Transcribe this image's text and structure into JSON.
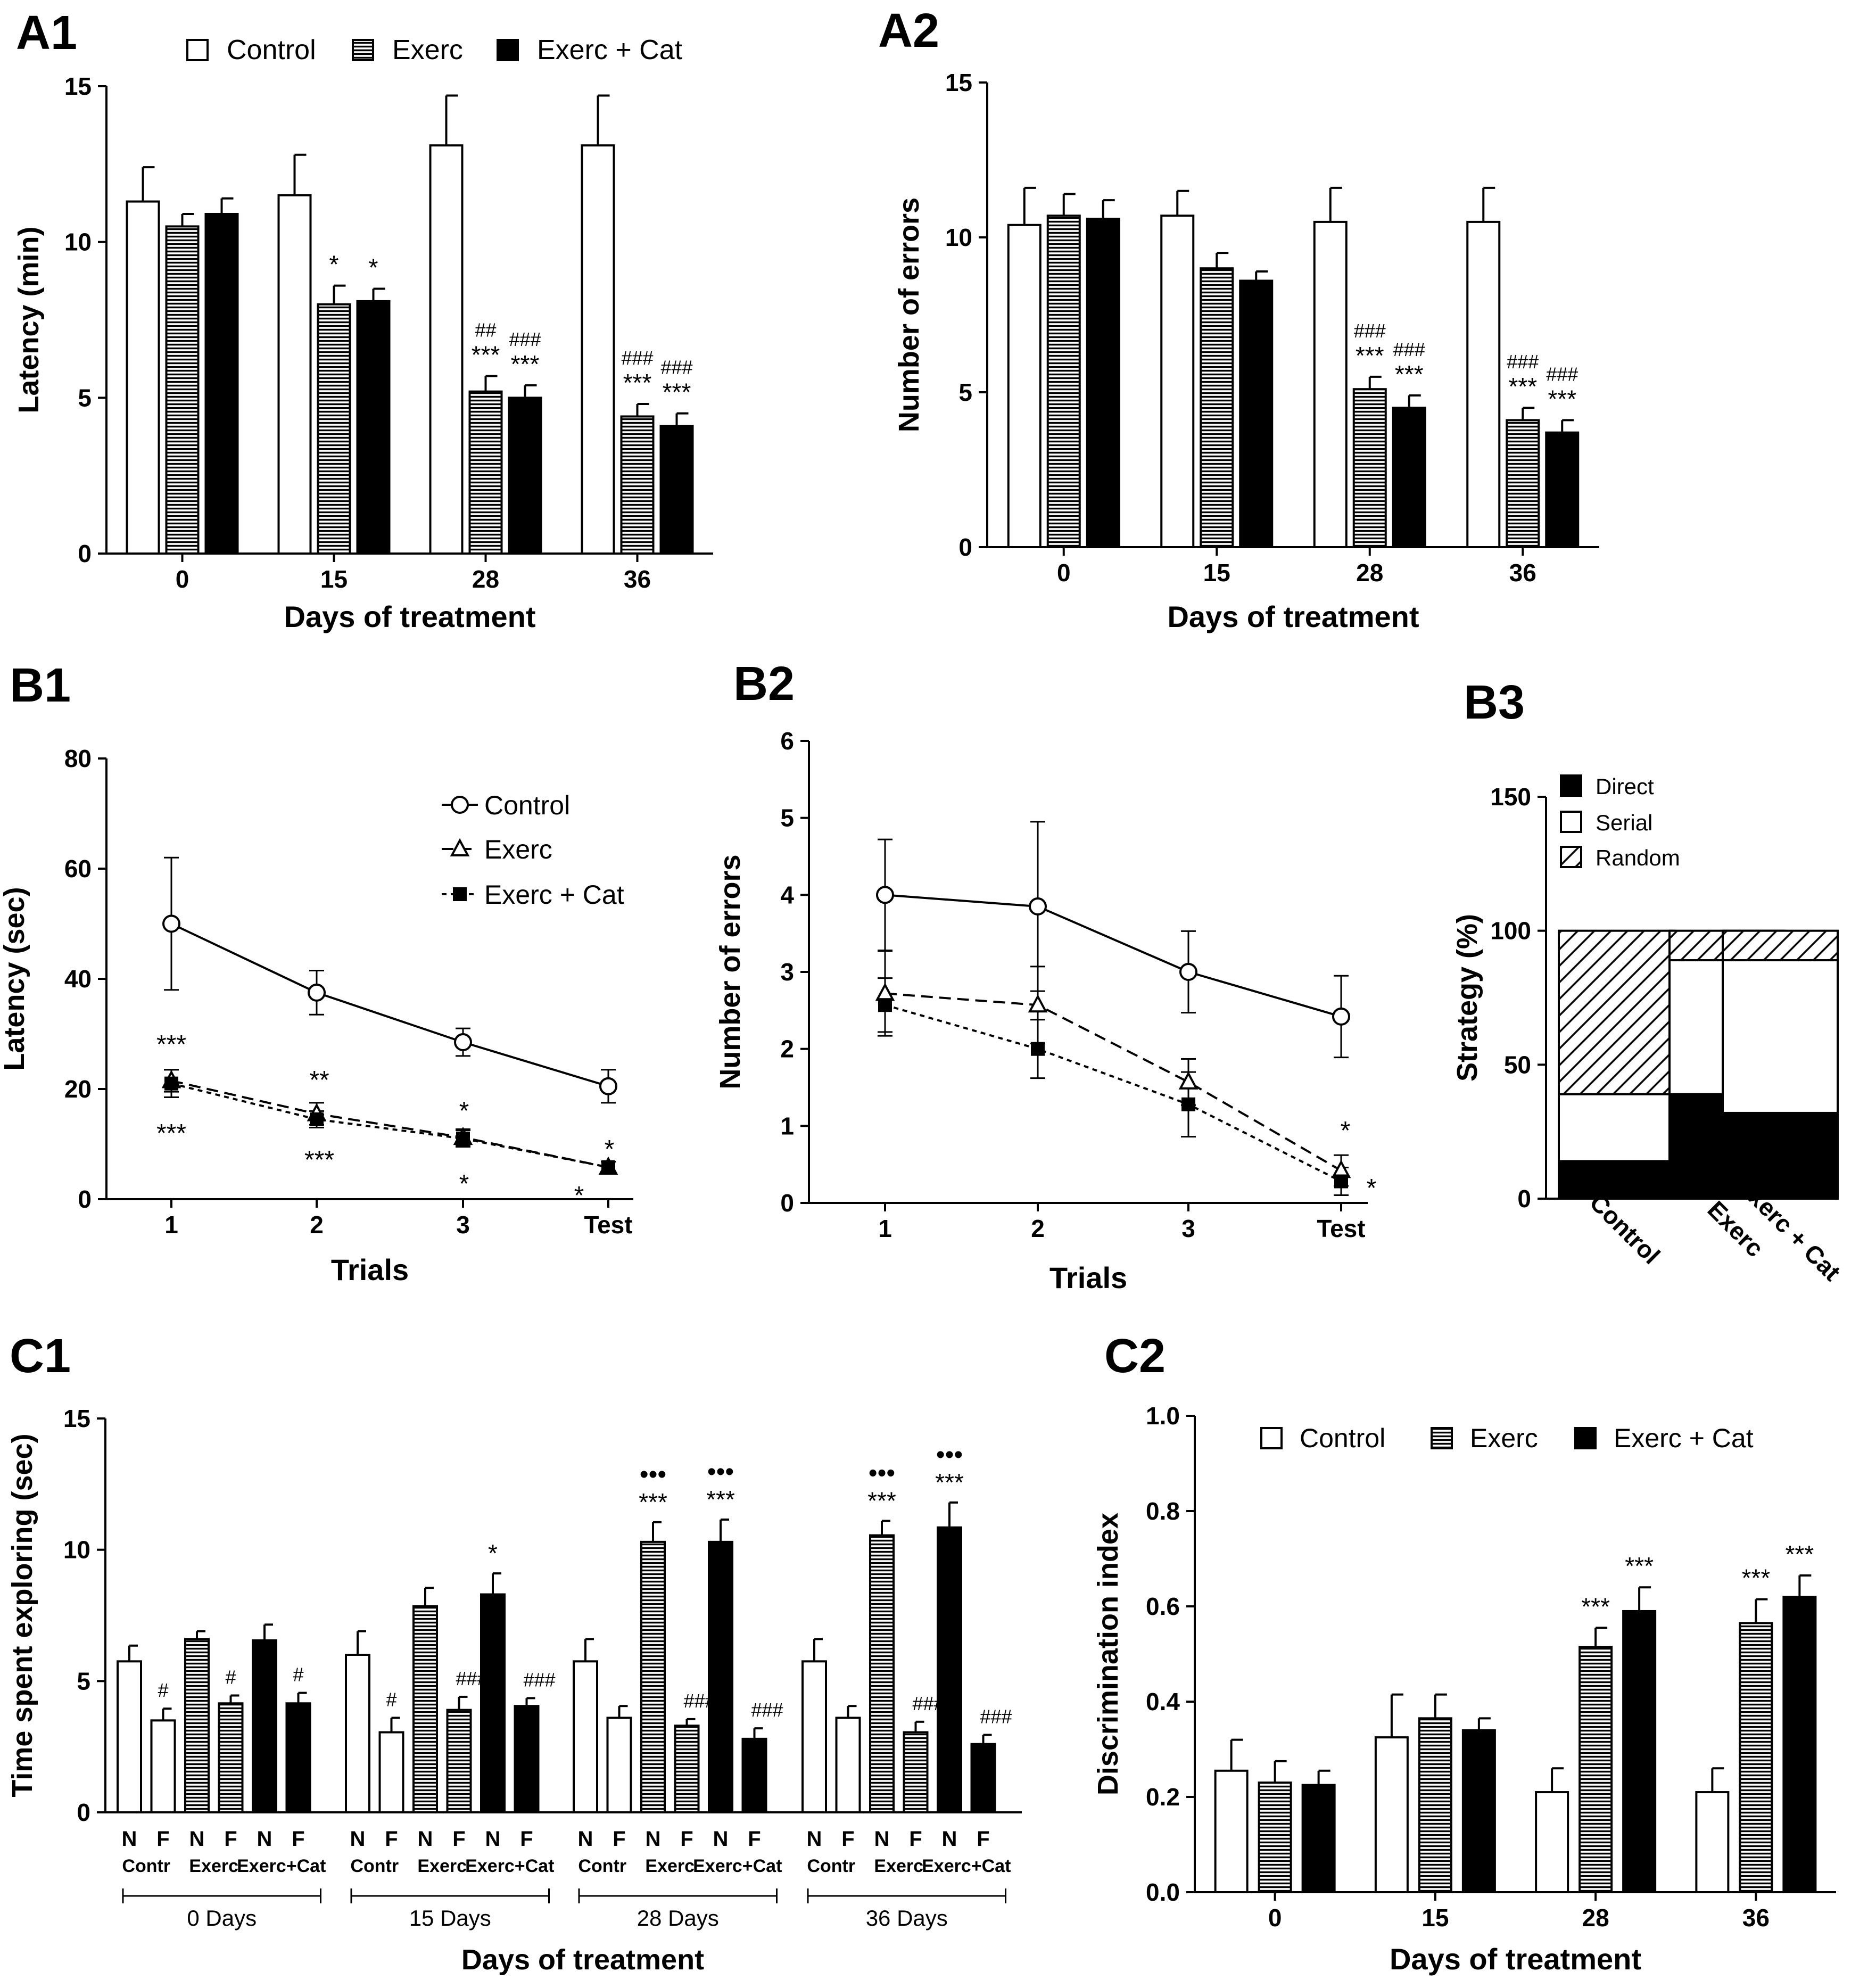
{
  "chart_data": [
    {
      "id": "A1",
      "panel_label": "A1",
      "type": "bar",
      "categories": [
        "0",
        "15",
        "28",
        "36"
      ],
      "xlabel": "Days of treatment",
      "ylabel": "Latency (min)",
      "ylim": [
        0,
        15
      ],
      "yticks": [
        "0",
        "5",
        "10",
        "15"
      ],
      "legend": [
        "Control",
        "Exerc",
        "Exerc + Cat"
      ],
      "series": [
        {
          "name": "Control",
          "fill": "white",
          "values": [
            11.3,
            11.5,
            13.1,
            13.1
          ],
          "errors": [
            1.1,
            1.3,
            1.6,
            1.6
          ],
          "annotations": [
            [],
            [],
            [],
            []
          ]
        },
        {
          "name": "Exerc",
          "fill": "hatch",
          "values": [
            10.5,
            8.0,
            5.2,
            4.4
          ],
          "errors": [
            0.4,
            0.6,
            0.5,
            0.4
          ],
          "annotations": [
            [],
            [
              "*"
            ],
            [
              "##",
              "***"
            ],
            [
              "###",
              "***"
            ]
          ]
        },
        {
          "name": "Exerc + Cat",
          "fill": "black",
          "values": [
            10.9,
            8.1,
            5.0,
            4.1
          ],
          "errors": [
            0.5,
            0.4,
            0.4,
            0.4
          ],
          "annotations": [
            [],
            [
              "*"
            ],
            [
              "###",
              "***"
            ],
            [
              "###",
              "***"
            ]
          ]
        }
      ]
    },
    {
      "id": "A2",
      "panel_label": "A2",
      "type": "bar",
      "categories": [
        "0",
        "15",
        "28",
        "36"
      ],
      "xlabel": "Days of treatment",
      "ylabel": "Number of errors",
      "ylim": [
        0,
        15
      ],
      "yticks": [
        "0",
        "5",
        "10",
        "15"
      ],
      "series": [
        {
          "name": "Control",
          "fill": "white",
          "values": [
            10.4,
            10.7,
            10.5,
            10.5
          ],
          "errors": [
            1.2,
            0.8,
            1.1,
            1.1
          ],
          "annotations": [
            [],
            [],
            [],
            []
          ]
        },
        {
          "name": "Exerc",
          "fill": "hatch",
          "values": [
            10.7,
            9.0,
            5.1,
            4.1
          ],
          "errors": [
            0.7,
            0.5,
            0.4,
            0.4
          ],
          "annotations": [
            [],
            [],
            [
              "###",
              "***"
            ],
            [
              "###",
              "***"
            ]
          ]
        },
        {
          "name": "Exerc + Cat",
          "fill": "black",
          "values": [
            10.6,
            8.6,
            4.5,
            3.7
          ],
          "errors": [
            0.6,
            0.3,
            0.4,
            0.4
          ],
          "annotations": [
            [],
            [],
            [
              "###",
              "***"
            ],
            [
              "###",
              "***"
            ]
          ]
        }
      ]
    },
    {
      "id": "B1",
      "panel_label": "B1",
      "type": "line",
      "categories": [
        "1",
        "2",
        "3",
        "Test"
      ],
      "xlabel": "Trials",
      "ylabel": "Latency (sec)",
      "ylim": [
        0,
        80
      ],
      "yticks": [
        "0",
        "20",
        "40",
        "60",
        "80"
      ],
      "legend": [
        "Control",
        "Exerc",
        "Exerc + Cat"
      ],
      "series": [
        {
          "name": "Control",
          "marker": "circle",
          "dash": "solid",
          "values": [
            50,
            37.5,
            28.5,
            20.5
          ],
          "errors": [
            12,
            4,
            2.5,
            3
          ]
        },
        {
          "name": "Exerc",
          "marker": "triangle",
          "dash": "dashed",
          "values": [
            21.5,
            15.5,
            11.2,
            5.8
          ],
          "errors": [
            2,
            2,
            1.5,
            1
          ],
          "annotations": [
            "***",
            "**",
            "*",
            "*"
          ]
        },
        {
          "name": "Exerc + Cat",
          "marker": "square",
          "dash": "dotted",
          "values": [
            21,
            14.5,
            11,
            5.8
          ],
          "errors": [
            2.5,
            1.5,
            1.5,
            1
          ],
          "annotations": [
            "***",
            "***",
            "*",
            "*"
          ]
        }
      ]
    },
    {
      "id": "B2",
      "panel_label": "B2",
      "type": "line",
      "categories": [
        "1",
        "2",
        "3",
        "Test"
      ],
      "xlabel": "Trials",
      "ylabel": "Number of errors",
      "ylim": [
        0,
        6
      ],
      "yticks": [
        "0",
        "1",
        "2",
        "3",
        "4",
        "5",
        "6"
      ],
      "series": [
        {
          "name": "Control",
          "marker": "circle",
          "dash": "solid",
          "values": [
            4.0,
            3.85,
            3.0,
            2.42
          ],
          "errors": [
            0.72,
            1.1,
            0.53,
            0.53
          ]
        },
        {
          "name": "Exerc",
          "marker": "triangle",
          "dash": "dashed",
          "values": [
            2.72,
            2.57,
            1.57,
            0.42
          ],
          "errors": [
            0.55,
            0.5,
            0.3,
            0.2
          ],
          "annotations": [
            "",
            "",
            "",
            "*"
          ]
        },
        {
          "name": "Exerc + Cat",
          "marker": "square",
          "dash": "dotted",
          "values": [
            2.57,
            2.0,
            1.28,
            0.28
          ],
          "errors": [
            0.35,
            0.38,
            0.42,
            0.18
          ],
          "annotations": [
            "",
            "",
            "",
            "*"
          ]
        }
      ]
    },
    {
      "id": "B3",
      "panel_label": "B3",
      "type": "bar",
      "stacked": true,
      "categories": [
        "Control",
        "Exerc",
        "Exerc + Cat"
      ],
      "ylabel": "Strategy (%)",
      "ylim": [
        0,
        150
      ],
      "yticks": [
        "0",
        "50",
        "100",
        "150"
      ],
      "legend": [
        "Direct",
        "Serial",
        "Random"
      ],
      "series": [
        {
          "name": "Direct",
          "fill": "black",
          "values": [
            14,
            39,
            32
          ]
        },
        {
          "name": "Serial",
          "fill": "white",
          "values": [
            25,
            50,
            57
          ]
        },
        {
          "name": "Random",
          "fill": "diag",
          "values": [
            61,
            11,
            11
          ]
        }
      ]
    },
    {
      "id": "C1",
      "panel_label": "C1",
      "type": "bar",
      "ylabel": "Time spent exploring (sec)",
      "xlabel": "Days of treatment",
      "ylim": [
        0,
        15
      ],
      "yticks": [
        "0",
        "5",
        "10",
        "15"
      ],
      "bar_letters": [
        "N",
        "F"
      ],
      "group_labels": [
        "Contr",
        "Exerc",
        "Exerc+Cat"
      ],
      "periods": [
        {
          "label": "0 Days",
          "bars": [
            {
              "group": "Control",
              "obj": "N",
              "fill": "white",
              "value": 5.75,
              "error": 0.6,
              "annotations": []
            },
            {
              "group": "Control",
              "obj": "F",
              "fill": "white",
              "value": 3.5,
              "error": 0.45,
              "annotations": [
                "#"
              ]
            },
            {
              "group": "Exerc",
              "obj": "N",
              "fill": "hatch",
              "value": 6.6,
              "error": 0.3,
              "annotations": []
            },
            {
              "group": "Exerc",
              "obj": "F",
              "fill": "hatch",
              "value": 4.15,
              "error": 0.3,
              "annotations": [
                "#"
              ]
            },
            {
              "group": "Exerc + Cat",
              "obj": "N",
              "fill": "black",
              "value": 6.55,
              "error": 0.6,
              "annotations": []
            },
            {
              "group": "Exerc + Cat",
              "obj": "F",
              "fill": "black",
              "value": 4.15,
              "error": 0.4,
              "annotations": [
                "#"
              ]
            }
          ]
        },
        {
          "label": "15 Days",
          "bars": [
            {
              "group": "Control",
              "obj": "N",
              "fill": "white",
              "value": 6.0,
              "error": 0.9,
              "annotations": []
            },
            {
              "group": "Control",
              "obj": "F",
              "fill": "white",
              "value": 3.05,
              "error": 0.55,
              "annotations": [
                "#"
              ]
            },
            {
              "group": "Exerc",
              "obj": "N",
              "fill": "hatch",
              "value": 7.85,
              "error": 0.7,
              "annotations": []
            },
            {
              "group": "Exerc",
              "obj": "F",
              "fill": "hatch",
              "value": 3.9,
              "error": 0.5,
              "annotations": [
                "###"
              ]
            },
            {
              "group": "Exerc + Cat",
              "obj": "N",
              "fill": "black",
              "value": 8.3,
              "error": 0.8,
              "annotations": [
                "*"
              ]
            },
            {
              "group": "Exerc + Cat",
              "obj": "F",
              "fill": "black",
              "value": 4.05,
              "error": 0.3,
              "annotations": [
                "###"
              ]
            }
          ]
        },
        {
          "label": "28 Days",
          "bars": [
            {
              "group": "Control",
              "obj": "N",
              "fill": "white",
              "value": 5.75,
              "error": 0.85,
              "annotations": []
            },
            {
              "group": "Control",
              "obj": "F",
              "fill": "white",
              "value": 3.6,
              "error": 0.45,
              "annotations": []
            },
            {
              "group": "Exerc",
              "obj": "N",
              "fill": "hatch",
              "value": 10.3,
              "error": 0.75,
              "annotations": [
                "•••",
                "***"
              ]
            },
            {
              "group": "Exerc",
              "obj": "F",
              "fill": "hatch",
              "value": 3.3,
              "error": 0.25,
              "annotations": [
                "###"
              ]
            },
            {
              "group": "Exerc + Cat",
              "obj": "N",
              "fill": "black",
              "value": 10.3,
              "error": 0.85,
              "annotations": [
                "•••",
                "***"
              ]
            },
            {
              "group": "Exerc + Cat",
              "obj": "F",
              "fill": "black",
              "value": 2.8,
              "error": 0.4,
              "annotations": [
                "###"
              ]
            }
          ]
        },
        {
          "label": "36 Days",
          "bars": [
            {
              "group": "Control",
              "obj": "N",
              "fill": "white",
              "value": 5.75,
              "error": 0.85,
              "annotations": []
            },
            {
              "group": "Control",
              "obj": "F",
              "fill": "white",
              "value": 3.6,
              "error": 0.45,
              "annotations": []
            },
            {
              "group": "Exerc",
              "obj": "N",
              "fill": "hatch",
              "value": 10.55,
              "error": 0.55,
              "annotations": [
                "•••",
                "***"
              ]
            },
            {
              "group": "Exerc",
              "obj": "F",
              "fill": "hatch",
              "value": 3.05,
              "error": 0.4,
              "annotations": [
                "###"
              ]
            },
            {
              "group": "Exerc + Cat",
              "obj": "N",
              "fill": "black",
              "value": 10.85,
              "error": 0.95,
              "annotations": [
                "•••",
                "***"
              ]
            },
            {
              "group": "Exerc + Cat",
              "obj": "F",
              "fill": "black",
              "value": 2.6,
              "error": 0.35,
              "annotations": [
                "###"
              ]
            }
          ]
        }
      ]
    },
    {
      "id": "C2",
      "panel_label": "C2",
      "type": "bar",
      "categories": [
        "0",
        "15",
        "28",
        "36"
      ],
      "xlabel": "Days of treatment",
      "ylabel": "Discrimination index",
      "ylim": [
        0,
        1.0
      ],
      "yticks": [
        "0.0",
        "0.2",
        "0.4",
        "0.6",
        "0.8",
        "1.0"
      ],
      "legend": [
        "Control",
        "Exerc",
        "Exerc + Cat"
      ],
      "series": [
        {
          "name": "Control",
          "fill": "white",
          "values": [
            0.255,
            0.325,
            0.21,
            0.21
          ],
          "errors": [
            0.065,
            0.09,
            0.05,
            0.05
          ],
          "annotations": [
            [],
            [],
            [],
            []
          ]
        },
        {
          "name": "Exerc",
          "fill": "hatch",
          "values": [
            0.23,
            0.365,
            0.515,
            0.565
          ],
          "errors": [
            0.045,
            0.05,
            0.04,
            0.05
          ],
          "annotations": [
            [],
            [],
            [
              "***"
            ],
            [
              "***"
            ]
          ]
        },
        {
          "name": "Exerc + Cat",
          "fill": "black",
          "values": [
            0.225,
            0.34,
            0.59,
            0.62
          ],
          "errors": [
            0.03,
            0.025,
            0.05,
            0.045
          ],
          "annotations": [
            [],
            [],
            [
              "***"
            ],
            [
              "***"
            ]
          ]
        }
      ]
    }
  ]
}
